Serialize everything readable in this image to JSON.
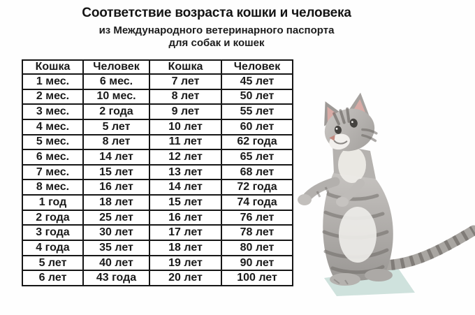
{
  "chart_data": {
    "type": "table",
    "title": "Соответствие возраста кошки и человека",
    "subtitle": [
      "из Международного ветеринарного паспорта",
      "для собак и кошек"
    ],
    "columns": [
      "Кошка",
      "Человек",
      "Кошка",
      "Человек"
    ],
    "rows": [
      [
        "1 мес.",
        "6 мес.",
        "7 лет",
        "45 лет"
      ],
      [
        "2 мес.",
        "10 мес.",
        "8 лет",
        "50 лет"
      ],
      [
        "3 мес.",
        "2 года",
        "9 лет",
        "55 лет"
      ],
      [
        "4 мес.",
        "5 лет",
        "10 лет",
        "60 лет"
      ],
      [
        "5 мес.",
        "8 лет",
        "11 лет",
        "62 года"
      ],
      [
        "6 мес.",
        "14 лет",
        "12 лет",
        "65 лет"
      ],
      [
        "7 мес.",
        "15 лет",
        "13 лет",
        "68 лет"
      ],
      [
        "8 мес.",
        "16 лет",
        "14 лет",
        "72 года"
      ],
      [
        "1 год",
        "18 лет",
        "15 лет",
        "74 года"
      ],
      [
        "2 года",
        "25 лет",
        "16 лет",
        "76 лет"
      ],
      [
        "3 года",
        "30 лет",
        "17 лет",
        "78 лет"
      ],
      [
        "4 года",
        "35 лет",
        "18 лет",
        "80 лет"
      ],
      [
        "5 лет",
        "40 лет",
        "19 лет",
        "90 лет"
      ],
      [
        "6 лет",
        "43 года",
        "20 лет",
        "100 лет"
      ]
    ],
    "layout": {
      "grid": "all-borders",
      "border_color": "#161616",
      "cell_background": "#ffffff"
    }
  },
  "illustration": {
    "name": "standing-tabby-kitten",
    "description": "gray tabby kitten standing upright on hind legs, head tilted up, front paws raised, striped tail extended to the right",
    "fur_light": "#cac7c4",
    "fur_mid": "#aaa7a4",
    "fur_dark": "#6b6763",
    "belly_white": "#efede9",
    "ear_pink": "#d8aba6",
    "shadow_teal": "#cfe2dd"
  }
}
